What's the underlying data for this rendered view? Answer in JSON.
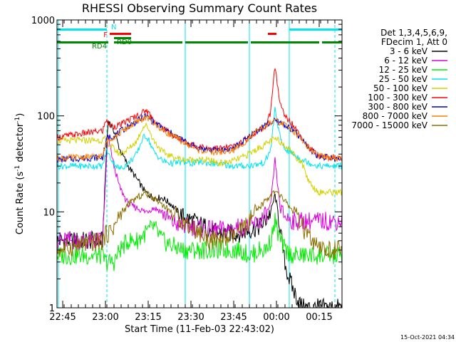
{
  "chart_data": {
    "type": "line",
    "title": "RHESSI Observing Summary Count Rates",
    "xlabel": "Start Time (11-Feb-03 22:43:02)",
    "ylabel_main": "Count Rate (s",
    "ylabel_sup1": "-1",
    "ylabel_mid": " detector",
    "ylabel_sup2": "-1",
    "ylabel_end": ")",
    "stamp": "15-Oct-2021 04:34",
    "x_unit": "minutes since 22:43:02",
    "xlim": [
      0,
      100
    ],
    "y_scale": "log",
    "ylim": [
      1,
      1000
    ],
    "x_ticks": [
      {
        "t": 2,
        "label": "22:45"
      },
      {
        "t": 17,
        "label": "23:00"
      },
      {
        "t": 32,
        "label": "23:15"
      },
      {
        "t": 47,
        "label": "23:30"
      },
      {
        "t": 62,
        "label": "23:45"
      },
      {
        "t": 77,
        "label": "00:00"
      },
      {
        "t": 92,
        "label": "00:15"
      }
    ],
    "y_ticks": [
      {
        "v": 1,
        "label": "1"
      },
      {
        "v": 10,
        "label": "10"
      },
      {
        "v": 100,
        "label": "100"
      },
      {
        "v": 1000,
        "label": "1000"
      }
    ],
    "legend_header": [
      "Det 1,3,4,5,6,9,",
      "FDecim 1, Att 0"
    ],
    "legend_placement": "right",
    "series": [
      {
        "name": "3 - 6 keV",
        "color": "#000000",
        "points": [
          [
            0,
            5
          ],
          [
            16,
            5
          ],
          [
            17.5,
            55
          ],
          [
            18,
            90
          ],
          [
            20,
            70
          ],
          [
            22,
            45
          ],
          [
            25,
            30
          ],
          [
            28,
            22
          ],
          [
            31,
            16
          ],
          [
            34,
            14
          ],
          [
            37,
            14
          ],
          [
            40,
            12
          ],
          [
            44,
            9
          ],
          [
            48,
            8
          ],
          [
            52,
            7
          ],
          [
            56,
            6
          ],
          [
            60,
            6
          ],
          [
            64,
            6
          ],
          [
            68,
            6.5
          ],
          [
            71,
            7
          ],
          [
            73,
            8
          ],
          [
            75,
            10
          ],
          [
            76.5,
            15
          ],
          [
            77.5,
            10
          ],
          [
            78.5,
            6
          ],
          [
            79.5,
            3.5
          ],
          [
            80.5,
            2.5
          ],
          [
            81.5,
            2
          ],
          [
            83,
            1.5
          ],
          [
            86,
            1
          ],
          [
            100,
            1
          ]
        ]
      },
      {
        "name": "6 - 12 keV",
        "color": "#e000e0",
        "points": [
          [
            0,
            5
          ],
          [
            16,
            5
          ],
          [
            17.5,
            40
          ],
          [
            18,
            60
          ],
          [
            20,
            30
          ],
          [
            22,
            18
          ],
          [
            25,
            12
          ],
          [
            28,
            11
          ],
          [
            31,
            10
          ],
          [
            34,
            11
          ],
          [
            37,
            10
          ],
          [
            40,
            8
          ],
          [
            44,
            7
          ],
          [
            48,
            7
          ],
          [
            52,
            6.5
          ],
          [
            56,
            6.5
          ],
          [
            60,
            6.5
          ],
          [
            64,
            7
          ],
          [
            68,
            7
          ],
          [
            71,
            8
          ],
          [
            73,
            9
          ],
          [
            75,
            12
          ],
          [
            76.5,
            35
          ],
          [
            77.5,
            18
          ],
          [
            78.5,
            10
          ],
          [
            80,
            9
          ],
          [
            83,
            8
          ],
          [
            86,
            8
          ],
          [
            100,
            8
          ]
        ]
      },
      {
        "name": "12 - 25 keV",
        "color": "#00ee00",
        "points": [
          [
            0,
            3.5
          ],
          [
            16,
            3.5
          ],
          [
            17,
            3
          ],
          [
            18,
            3
          ],
          [
            20,
            3
          ],
          [
            22,
            4
          ],
          [
            25,
            5
          ],
          [
            28,
            5
          ],
          [
            31,
            6
          ],
          [
            34,
            7
          ],
          [
            37,
            5
          ],
          [
            40,
            4.5
          ],
          [
            44,
            4
          ],
          [
            48,
            4
          ],
          [
            52,
            4
          ],
          [
            56,
            4
          ],
          [
            60,
            4
          ],
          [
            64,
            4
          ],
          [
            68,
            3.5
          ],
          [
            71,
            4
          ],
          [
            73,
            4
          ],
          [
            75,
            5
          ],
          [
            76.5,
            8
          ],
          [
            77.5,
            6
          ],
          [
            78.5,
            5
          ],
          [
            80,
            4
          ],
          [
            83,
            3.5
          ],
          [
            86,
            3.5
          ],
          [
            100,
            3.5
          ]
        ]
      },
      {
        "name": "25 - 50 keV",
        "color": "#00e5ee",
        "points": [
          [
            0,
            30
          ],
          [
            16,
            30
          ],
          [
            17.5,
            45
          ],
          [
            18,
            40
          ],
          [
            20,
            32
          ],
          [
            22,
            28
          ],
          [
            25,
            32
          ],
          [
            28,
            40
          ],
          [
            30,
            58
          ],
          [
            31,
            62
          ],
          [
            32,
            58
          ],
          [
            34,
            42
          ],
          [
            37,
            34
          ],
          [
            40,
            32
          ],
          [
            44,
            33
          ],
          [
            47,
            32
          ],
          [
            50,
            33
          ],
          [
            54,
            32
          ],
          [
            58,
            31
          ],
          [
            62,
            30
          ],
          [
            66,
            30
          ],
          [
            70,
            31
          ],
          [
            73,
            33
          ],
          [
            75,
            45
          ],
          [
            76.5,
            118
          ],
          [
            77.5,
            80
          ],
          [
            78.5,
            55
          ],
          [
            80,
            45
          ],
          [
            83,
            40
          ],
          [
            86,
            35
          ],
          [
            89,
            32
          ],
          [
            92,
            30
          ],
          [
            100,
            30
          ]
        ]
      },
      {
        "name": "50 - 100 keV",
        "color": "#d2d200",
        "points": [
          [
            0,
            55
          ],
          [
            16,
            56
          ],
          [
            17.5,
            58
          ],
          [
            18,
            52
          ],
          [
            20,
            45
          ],
          [
            22,
            40
          ],
          [
            25,
            45
          ],
          [
            28,
            55
          ],
          [
            30,
            75
          ],
          [
            31,
            80
          ],
          [
            32,
            75
          ],
          [
            34,
            55
          ],
          [
            37,
            42
          ],
          [
            40,
            38
          ],
          [
            44,
            35
          ],
          [
            47,
            35
          ],
          [
            50,
            35
          ],
          [
            54,
            34
          ],
          [
            58,
            32
          ],
          [
            62,
            34
          ],
          [
            66,
            38
          ],
          [
            70,
            45
          ],
          [
            73,
            50
          ],
          [
            75,
            55
          ],
          [
            76.5,
            57
          ],
          [
            78,
            55
          ],
          [
            80,
            50
          ],
          [
            83,
            40
          ],
          [
            86,
            32
          ],
          [
            88,
            22
          ],
          [
            90,
            18
          ],
          [
            92,
            16
          ],
          [
            100,
            16
          ]
        ]
      },
      {
        "name": "100 - 300 keV",
        "color": "#ff0000",
        "points": [
          [
            0,
            60
          ],
          [
            16,
            70
          ],
          [
            17.5,
            95
          ],
          [
            18,
            80
          ],
          [
            20,
            78
          ],
          [
            22,
            80
          ],
          [
            25,
            90
          ],
          [
            28,
            100
          ],
          [
            30,
            108
          ],
          [
            31,
            115
          ],
          [
            32,
            110
          ],
          [
            34,
            90
          ],
          [
            37,
            75
          ],
          [
            40,
            65
          ],
          [
            44,
            55
          ],
          [
            47,
            50
          ],
          [
            50,
            48
          ],
          [
            54,
            46
          ],
          [
            58,
            46
          ],
          [
            62,
            48
          ],
          [
            66,
            56
          ],
          [
            70,
            68
          ],
          [
            73,
            75
          ],
          [
            75,
            110
          ],
          [
            76,
            250
          ],
          [
            76.5,
            330
          ],
          [
            77,
            260
          ],
          [
            78,
            140
          ],
          [
            80,
            100
          ],
          [
            83,
            80
          ],
          [
            86,
            60
          ],
          [
            89,
            45
          ],
          [
            92,
            38
          ],
          [
            100,
            36
          ]
        ]
      },
      {
        "name": "300 - 800 keV",
        "color": "#0000cc",
        "points": [
          [
            0,
            35
          ],
          [
            16,
            37
          ],
          [
            17.5,
            58
          ],
          [
            18,
            60
          ],
          [
            20,
            62
          ],
          [
            22,
            68
          ],
          [
            25,
            78
          ],
          [
            28,
            88
          ],
          [
            30,
            95
          ],
          [
            31,
            100
          ],
          [
            32,
            97
          ],
          [
            34,
            85
          ],
          [
            37,
            75
          ],
          [
            40,
            66
          ],
          [
            44,
            56
          ],
          [
            47,
            50
          ],
          [
            50,
            46
          ],
          [
            54,
            44
          ],
          [
            58,
            44
          ],
          [
            62,
            46
          ],
          [
            66,
            56
          ],
          [
            70,
            70
          ],
          [
            73,
            80
          ],
          [
            75,
            85
          ],
          [
            76.5,
            88
          ],
          [
            78,
            86
          ],
          [
            80,
            80
          ],
          [
            83,
            70
          ],
          [
            86,
            56
          ],
          [
            89,
            44
          ],
          [
            92,
            38
          ],
          [
            100,
            35
          ]
        ]
      },
      {
        "name": "800 - 7000 keV",
        "color": "#ff7f00",
        "points": [
          [
            0,
            36
          ],
          [
            16,
            38
          ],
          [
            17.5,
            56
          ],
          [
            18,
            58
          ],
          [
            20,
            60
          ],
          [
            22,
            66
          ],
          [
            25,
            76
          ],
          [
            28,
            86
          ],
          [
            30,
            93
          ],
          [
            31,
            96
          ],
          [
            32,
            94
          ],
          [
            34,
            83
          ],
          [
            37,
            72
          ],
          [
            40,
            63
          ],
          [
            44,
            54
          ],
          [
            47,
            48
          ],
          [
            50,
            44
          ],
          [
            54,
            42
          ],
          [
            58,
            42
          ],
          [
            62,
            44
          ],
          [
            66,
            54
          ],
          [
            70,
            68
          ],
          [
            73,
            78
          ],
          [
            75,
            84
          ],
          [
            76.5,
            88
          ],
          [
            78,
            86
          ],
          [
            80,
            80
          ],
          [
            83,
            70
          ],
          [
            86,
            56
          ],
          [
            89,
            44
          ],
          [
            92,
            38
          ],
          [
            100,
            35
          ]
        ]
      },
      {
        "name": "7000 - 15000 keV",
        "color": "#8b6f00",
        "points": [
          [
            0,
            4
          ],
          [
            16,
            5
          ],
          [
            17.5,
            6
          ],
          [
            18,
            6
          ],
          [
            20,
            7
          ],
          [
            22,
            9
          ],
          [
            25,
            12
          ],
          [
            28,
            14
          ],
          [
            30,
            15
          ],
          [
            31,
            16
          ],
          [
            32,
            15
          ],
          [
            34,
            14
          ],
          [
            37,
            12
          ],
          [
            40,
            10
          ],
          [
            44,
            8
          ],
          [
            47,
            7
          ],
          [
            50,
            6
          ],
          [
            54,
            5
          ],
          [
            58,
            5
          ],
          [
            62,
            5.5
          ],
          [
            66,
            7
          ],
          [
            70,
            10
          ],
          [
            73,
            13
          ],
          [
            75,
            15
          ],
          [
            76.5,
            16
          ],
          [
            78,
            15
          ],
          [
            80,
            13
          ],
          [
            83,
            10
          ],
          [
            86,
            7
          ],
          [
            89,
            5
          ],
          [
            92,
            4
          ],
          [
            100,
            4
          ]
        ]
      }
    ],
    "flags": [
      {
        "label": "N",
        "color": "#00e5ee",
        "label_side": "above",
        "segments": [
          [
            0,
            17.5
          ],
          [
            81.5,
            100
          ]
        ],
        "row": 1
      },
      {
        "label": "F",
        "color": "#ff0000",
        "label_side": "left",
        "segments": [
          [
            18.5,
            26
          ],
          [
            74,
            77
          ]
        ],
        "row": 2
      },
      {
        "label": "RD0",
        "color": "#008800",
        "label_side": "below",
        "segments": [
          [
            20,
            26
          ]
        ],
        "row": 3
      },
      {
        "label": "RD4",
        "color": "#008800",
        "label_side": "belowleft",
        "segments": [
          [
            0,
            18
          ],
          [
            20,
            44
          ],
          [
            45,
            67
          ],
          [
            68,
            92
          ],
          [
            93,
            100
          ]
        ],
        "row": 4
      }
    ],
    "vlines": [
      {
        "t": 0.5,
        "style": "solid"
      },
      {
        "t": 17.5,
        "style": "dashed"
      },
      {
        "t": 45,
        "style": "solid"
      },
      {
        "t": 67.5,
        "style": "solid"
      },
      {
        "t": 81.5,
        "style": "solid"
      },
      {
        "t": 97.5,
        "style": "dashed"
      }
    ]
  }
}
